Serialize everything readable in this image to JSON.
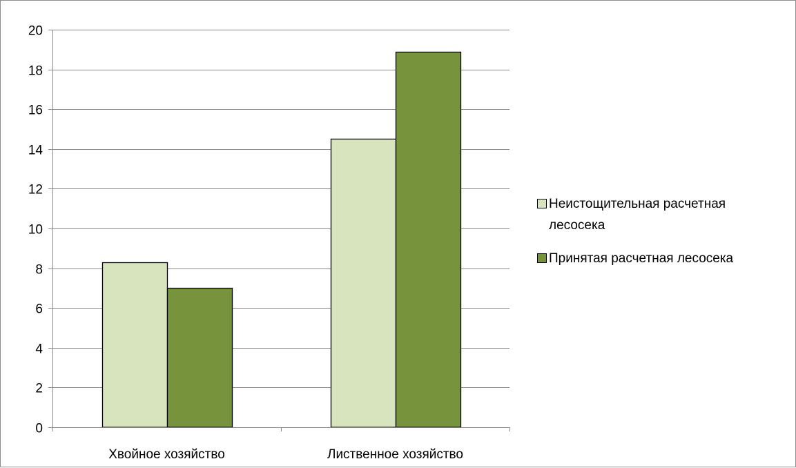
{
  "chart_data": {
    "type": "bar",
    "categories": [
      "Хвойное хозяйство",
      "Лиственное хозяйство"
    ],
    "series": [
      {
        "name": "Неистощительная расчетная лесосека",
        "legend_lines": [
          "Неистощительная расчетная",
          "лесосека"
        ],
        "color": "#d7e4bd",
        "values": [
          8.3,
          14.5
        ]
      },
      {
        "name": "Принятая расчетная лесосека",
        "legend_lines": [
          "Принятая расчетная лесосека"
        ],
        "color": "#77933c",
        "values": [
          7.0,
          18.9
        ]
      }
    ],
    "ylim": [
      0,
      20
    ],
    "yticks": [
      0,
      2,
      4,
      6,
      8,
      10,
      12,
      14,
      16,
      18,
      20
    ],
    "title": "",
    "xlabel": "",
    "ylabel": "",
    "grid": true,
    "legend_position": "right",
    "colors": {
      "gridline": "#868686",
      "bar_outline": "#000000",
      "frame": "#8c8c8c"
    }
  }
}
